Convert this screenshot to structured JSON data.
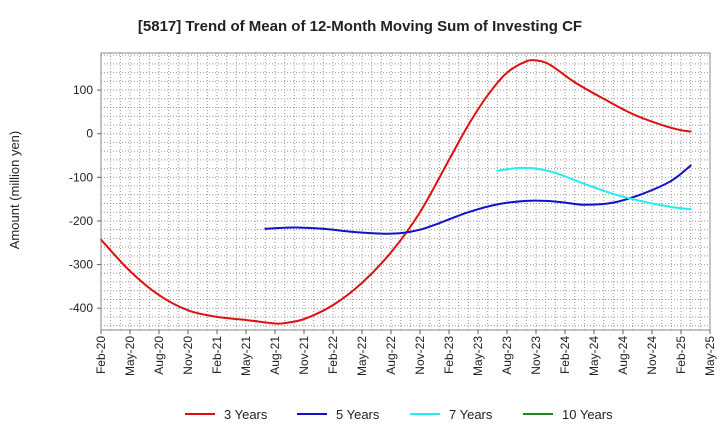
{
  "chart_data": {
    "type": "line",
    "title": "[5817]  Trend of Mean of 12-Month Moving Sum of Investing CF",
    "ylabel": "Amount (million yen)",
    "xlabel": "",
    "ylim": [
      -450,
      185
    ],
    "yticks": [
      100,
      0,
      -100,
      -200,
      -300,
      -400
    ],
    "ytick_labels": [
      "100",
      "0",
      "-100",
      "-200",
      "-300",
      "-400"
    ],
    "x_start": "Feb-20",
    "x_end": "May-25",
    "months_total": 63,
    "xtick_labels": [
      "Feb-20",
      "May-20",
      "Aug-20",
      "Nov-20",
      "Feb-21",
      "May-21",
      "Aug-21",
      "Nov-21",
      "Feb-22",
      "May-22",
      "Aug-22",
      "Nov-22",
      "Feb-23",
      "May-23",
      "Aug-23",
      "Nov-23",
      "Feb-24",
      "May-24",
      "Aug-24",
      "Nov-24",
      "Feb-25",
      "May-25"
    ],
    "grid": true,
    "legend_position": "bottom",
    "series": [
      {
        "name": "3 Years",
        "color": "#dd1111",
        "points": [
          [
            0,
            -243
          ],
          [
            3,
            -315
          ],
          [
            6,
            -370
          ],
          [
            9,
            -405
          ],
          [
            12,
            -420
          ],
          [
            15,
            -427
          ],
          [
            18,
            -435
          ],
          [
            19,
            -434
          ],
          [
            21,
            -425
          ],
          [
            24,
            -393
          ],
          [
            27,
            -342
          ],
          [
            30,
            -272
          ],
          [
            33,
            -180
          ],
          [
            36,
            -60
          ],
          [
            38,
            20
          ],
          [
            40,
            88
          ],
          [
            42,
            140
          ],
          [
            44,
            166
          ],
          [
            45,
            168
          ],
          [
            46,
            163
          ],
          [
            47,
            150
          ],
          [
            49,
            118
          ],
          [
            52,
            80
          ],
          [
            55,
            45
          ],
          [
            58,
            20
          ],
          [
            60,
            8
          ],
          [
            61,
            5
          ]
        ]
      },
      {
        "name": "5 Years",
        "color": "#1111cc",
        "points": [
          [
            17,
            -218
          ],
          [
            20,
            -215
          ],
          [
            23,
            -218
          ],
          [
            26,
            -225
          ],
          [
            29,
            -229
          ],
          [
            31,
            -228
          ],
          [
            33,
            -220
          ],
          [
            35,
            -205
          ],
          [
            38,
            -180
          ],
          [
            41,
            -162
          ],
          [
            44,
            -154
          ],
          [
            46,
            -154
          ],
          [
            48,
            -158
          ],
          [
            50,
            -163
          ],
          [
            53,
            -158
          ],
          [
            56,
            -138
          ],
          [
            59,
            -108
          ],
          [
            61,
            -73
          ]
        ]
      },
      {
        "name": "7 Years",
        "color": "#22eeee",
        "points": [
          [
            41,
            -85
          ],
          [
            43,
            -79
          ],
          [
            45,
            -80
          ],
          [
            47,
            -90
          ],
          [
            50,
            -115
          ],
          [
            53,
            -138
          ],
          [
            56,
            -155
          ],
          [
            59,
            -168
          ],
          [
            61,
            -173
          ]
        ]
      },
      {
        "name": "10 Years",
        "color": "#228822",
        "points": []
      }
    ]
  }
}
